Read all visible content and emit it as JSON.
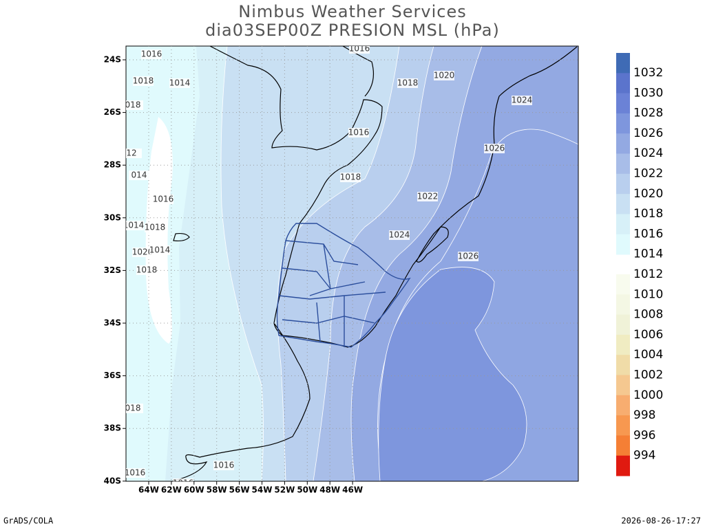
{
  "title": "Nimbus Weather Services",
  "subtitle": "dia03SEP00Z PRESION MSL (hPa)",
  "map": {
    "lat_labels": [
      "24S",
      "26S",
      "28S",
      "30S",
      "32S",
      "34S",
      "36S",
      "38S",
      "40S"
    ],
    "lon_labels": [
      "64W",
      "62W",
      "60W",
      "58W",
      "56W",
      "54W",
      "52W",
      "50W",
      "48W",
      "46W"
    ],
    "contour_labels": [
      "1016",
      "1016",
      "1018",
      "1014",
      "018",
      "12",
      "014",
      "1016",
      "1018",
      "1020",
      "1024",
      "1016",
      "1026",
      "1018",
      "1022",
      "1016",
      "1014",
      "1018",
      "1024",
      "1020",
      "1014",
      "1026",
      "1018",
      "018",
      "1016",
      "1016"
    ]
  },
  "colorbar": {
    "upper_labels": [
      "1032",
      "1030",
      "1028",
      "1026",
      "1024",
      "1022",
      "1020",
      "1018",
      "1016",
      "1014"
    ],
    "upper_colors": [
      "#3f6bb5",
      "#5b74cc",
      "#6b82d6",
      "#7e96dd",
      "#93a9e2",
      "#a8bde8",
      "#b9cfee",
      "#c9e0f3",
      "#d7f0f8",
      "#e0fafd"
    ],
    "lower_labels": [
      "1012",
      "1010",
      "1008",
      "1006",
      "1004",
      "1002",
      "1000",
      "998",
      "996",
      "994"
    ],
    "lower_colors": [
      "#f8fbee",
      "#f4f7e4",
      "#f0f2d8",
      "#f0ecc2",
      "#f0dca8",
      "#f5c890",
      "#f7ad70",
      "#f79850",
      "#f57f35",
      "#e01a10"
    ]
  },
  "footer": {
    "left": "GrADS/COLA",
    "right": "2026-08-26-17:27"
  }
}
